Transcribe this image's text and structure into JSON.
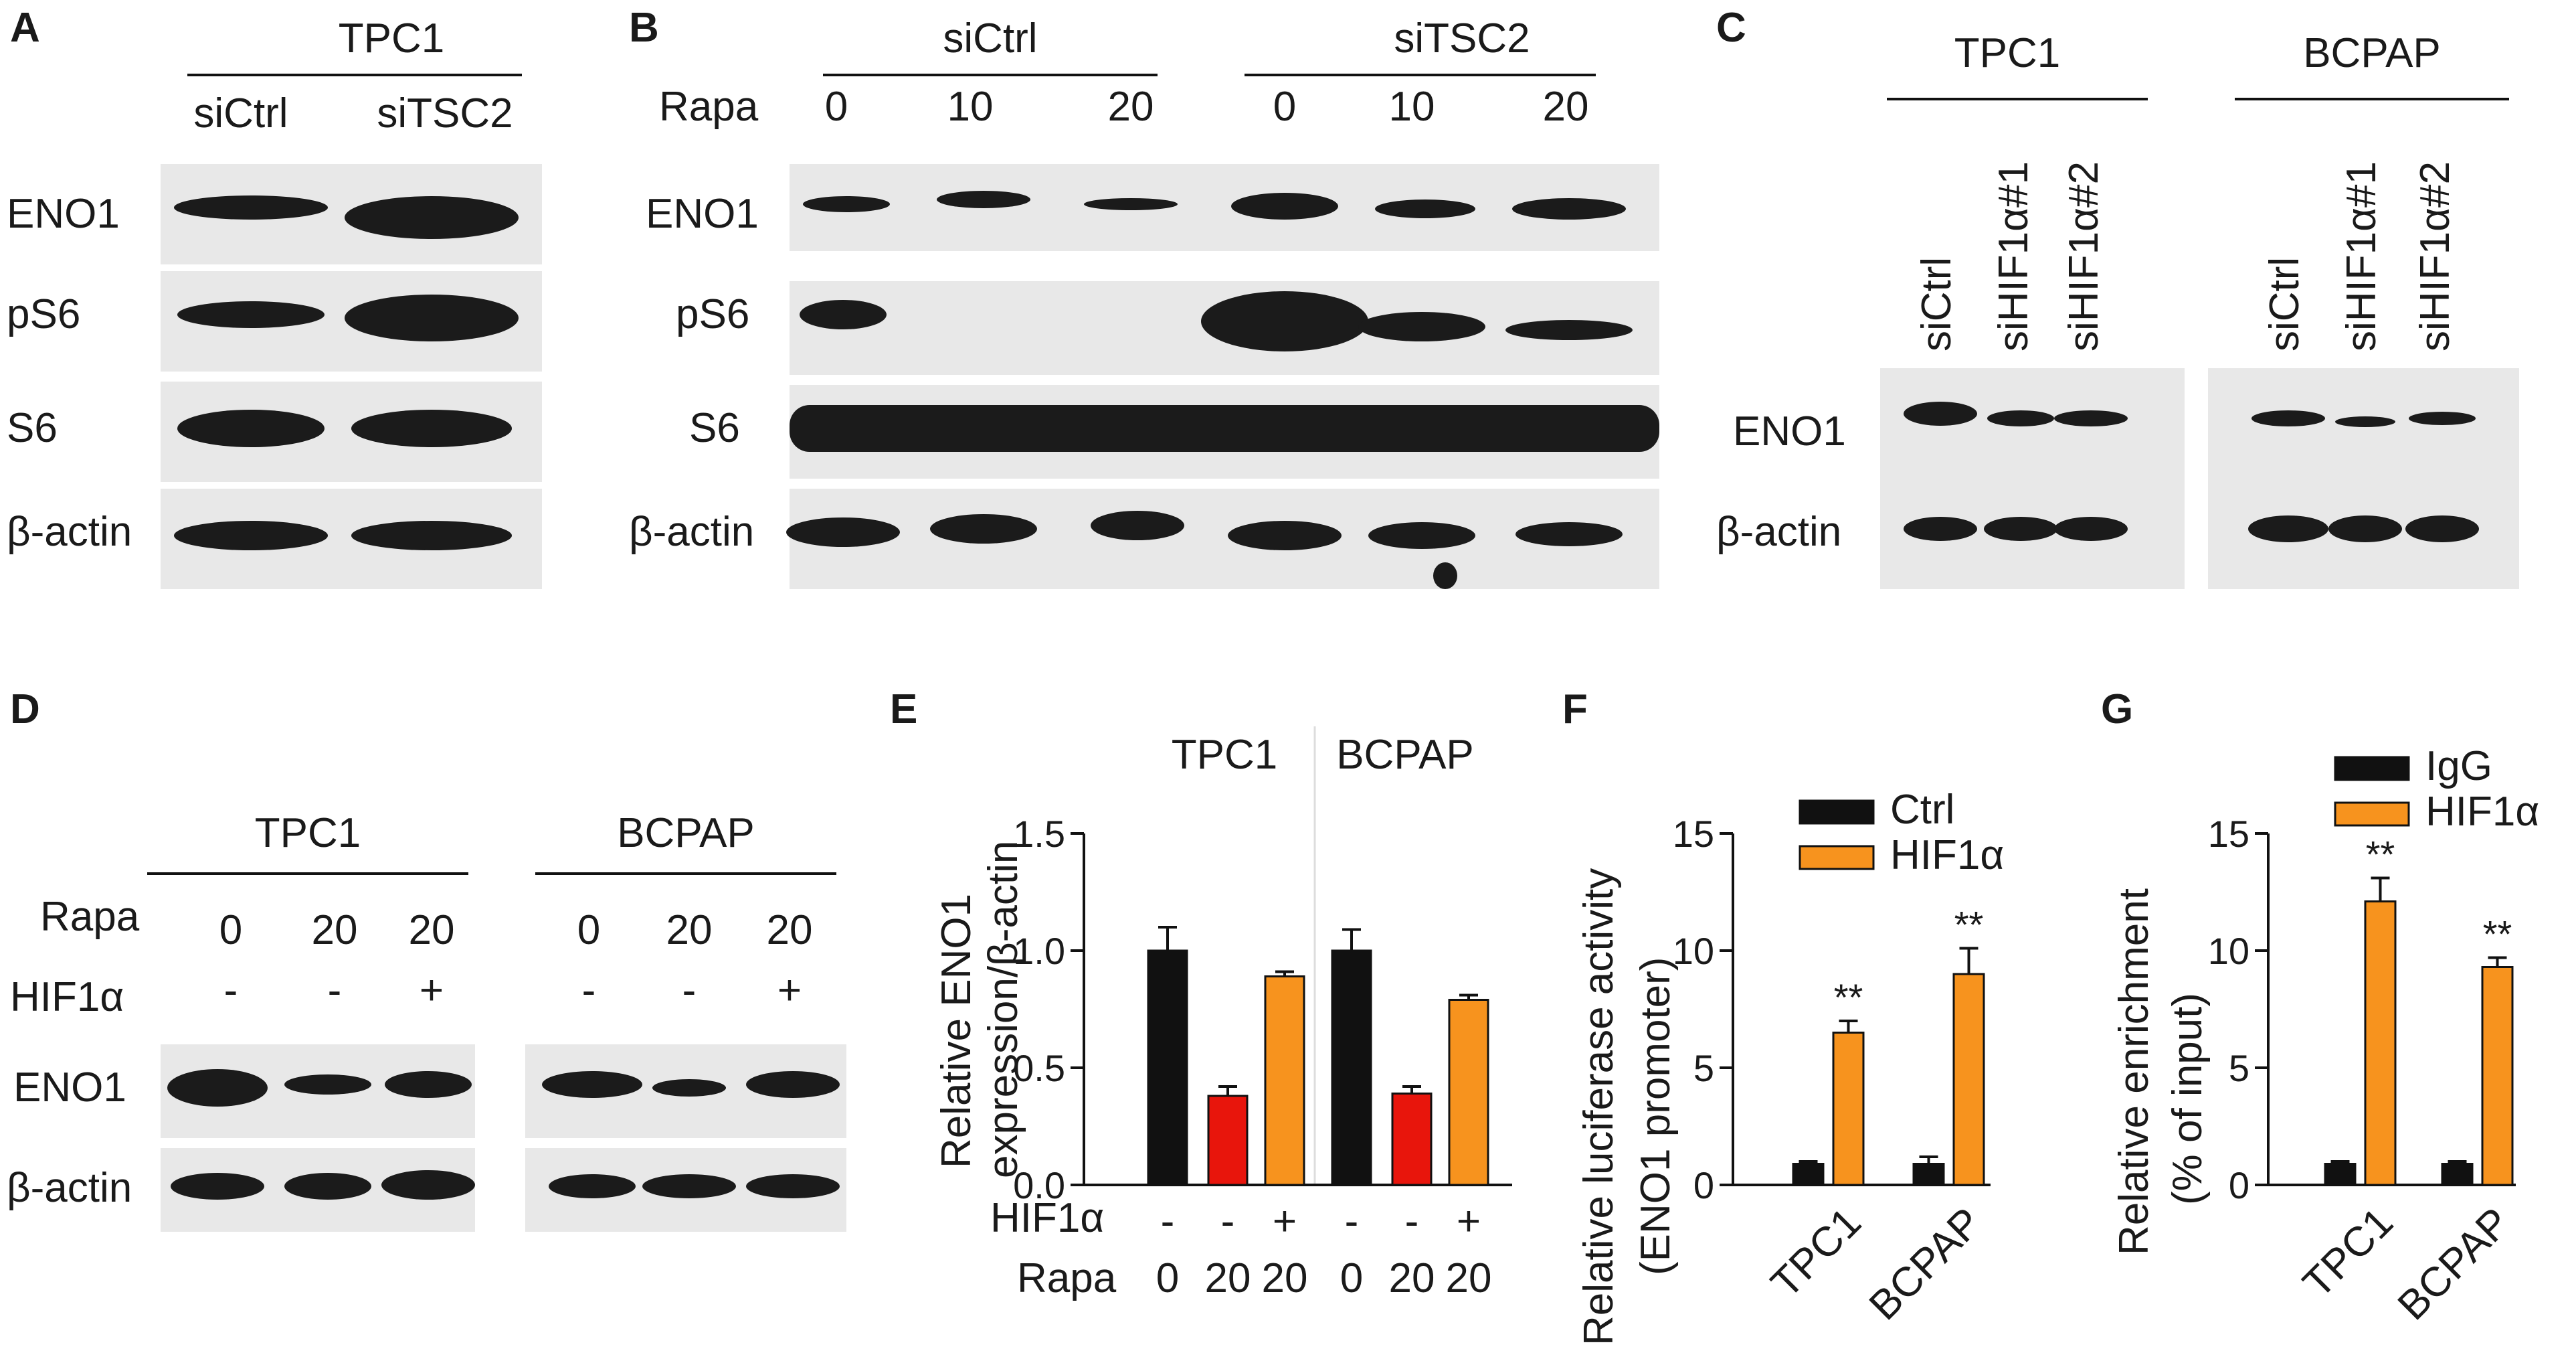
{
  "colors": {
    "black_bar": "#111111",
    "red_bar": "#e8150c",
    "orange_bar": "#f7931e",
    "blot_background": "#e8e8e8",
    "band": "#1b1b1b"
  },
  "panels": {
    "A": {
      "letter": "A",
      "group": "TPC1",
      "lanes": [
        "siCtrl",
        "siTSC2"
      ],
      "rows": [
        "ENO1",
        "pS6",
        "S6",
        "β-actin"
      ]
    },
    "B": {
      "letter": "B",
      "groups": [
        "siCtrl",
        "siTSC2"
      ],
      "rapa_label": "Rapa",
      "rapa_values": [
        "0",
        "10",
        "20",
        "0",
        "10",
        "20"
      ],
      "rows": [
        "ENO1",
        "pS6",
        "S6",
        "β-actin"
      ]
    },
    "C": {
      "letter": "C",
      "groups": [
        "TPC1",
        "BCPAP"
      ],
      "lanes": [
        "siCtrl",
        "siHIF1α#1",
        "siHIF1α#2",
        "siCtrl",
        "siHIF1α#1",
        "siHIF1α#2"
      ],
      "rows": [
        "ENO1",
        "β-actin"
      ]
    },
    "D": {
      "letter": "D",
      "groups": [
        "TPC1",
        "BCPAP"
      ],
      "rapa_label": "Rapa",
      "rapa_values": [
        "0",
        "20",
        "20",
        "0",
        "20",
        "20"
      ],
      "hif_label": "HIF1α",
      "hif_values": [
        "-",
        "-",
        "+",
        "-",
        "-",
        "+"
      ],
      "rows": [
        "ENO1",
        "β-actin"
      ]
    },
    "E": {
      "letter": "E"
    },
    "F": {
      "letter": "F"
    },
    "G": {
      "letter": "G"
    }
  },
  "chart_data": [
    {
      "panel": "E",
      "type": "bar",
      "ylabel_lines": [
        "Relative ENO1",
        "expression/β-actin"
      ],
      "groups": [
        "TPC1",
        "BCPAP"
      ],
      "ylim": [
        0,
        1.5
      ],
      "yticks": [
        "0.0",
        "0.5",
        "1.0",
        "1.5"
      ],
      "row_labels": {
        "hif": "HIF1α",
        "rapa": "Rapa"
      },
      "bars": [
        {
          "group": "TPC1",
          "hif": "-",
          "rapa": "0",
          "value": 1.0,
          "error": 0.1,
          "color": "#111111"
        },
        {
          "group": "TPC1",
          "hif": "-",
          "rapa": "20",
          "value": 0.38,
          "error": 0.04,
          "color": "#e8150c"
        },
        {
          "group": "TPC1",
          "hif": "+",
          "rapa": "20",
          "value": 0.89,
          "error": 0.02,
          "color": "#f7931e"
        },
        {
          "group": "BCPAP",
          "hif": "-",
          "rapa": "0",
          "value": 1.0,
          "error": 0.09,
          "color": "#111111"
        },
        {
          "group": "BCPAP",
          "hif": "-",
          "rapa": "20",
          "value": 0.39,
          "error": 0.03,
          "color": "#e8150c"
        },
        {
          "group": "BCPAP",
          "hif": "+",
          "rapa": "20",
          "value": 0.79,
          "error": 0.02,
          "color": "#f7931e"
        }
      ]
    },
    {
      "panel": "F",
      "type": "bar",
      "ylabel_lines": [
        "Relative luciferase activity",
        "(ENO1 promoter)"
      ],
      "categories": [
        "TPC1",
        "BCPAP"
      ],
      "ylim": [
        0,
        15
      ],
      "yticks": [
        "0",
        "5",
        "10",
        "15"
      ],
      "series": [
        {
          "name": "Ctrl",
          "values": [
            0.9,
            0.9
          ],
          "errors": [
            0.1,
            0.3
          ],
          "color": "#111111"
        },
        {
          "name": "HIF1α",
          "values": [
            6.5,
            9.0
          ],
          "errors": [
            0.5,
            1.1
          ],
          "color": "#f7931e",
          "annotations": [
            "**",
            "**"
          ]
        }
      ],
      "legend": "top"
    },
    {
      "panel": "G",
      "type": "bar",
      "ylabel_lines": [
        "Relative enrichment",
        "(% of input)"
      ],
      "categories": [
        "TPC1",
        "BCPAP"
      ],
      "ylim": [
        0,
        15
      ],
      "yticks": [
        "0",
        "5",
        "10",
        "15"
      ],
      "series": [
        {
          "name": "IgG",
          "values": [
            0.9,
            0.9
          ],
          "errors": [
            0.1,
            0.1
          ],
          "color": "#111111"
        },
        {
          "name": "HIF1α",
          "values": [
            12.1,
            9.3
          ],
          "errors": [
            1.0,
            0.4
          ],
          "color": "#f7931e",
          "annotations": [
            "**",
            "**"
          ]
        }
      ],
      "legend": "top"
    }
  ]
}
